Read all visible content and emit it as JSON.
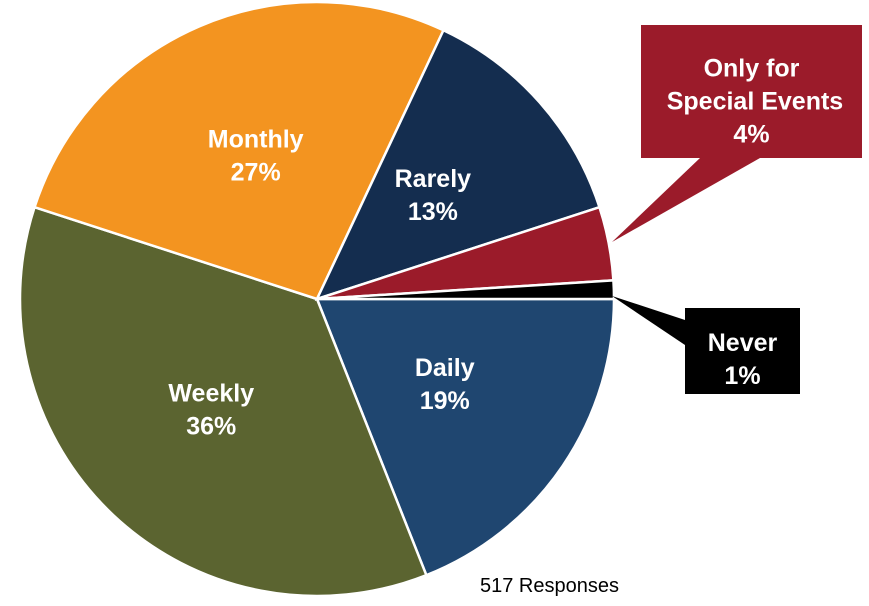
{
  "chart_data": {
    "type": "pie",
    "categories": [
      "Daily",
      "Weekly",
      "Monthly",
      "Rarely",
      "Only for Special Events",
      "Never"
    ],
    "values": [
      19,
      36,
      27,
      13,
      4,
      1
    ],
    "value_labels": [
      "19%",
      "36%",
      "27%",
      "13%",
      "4%",
      "1%"
    ],
    "colors": [
      "#1f4670",
      "#5b6430",
      "#f39420",
      "#142d4f",
      "#9b1b2a",
      "#000000"
    ],
    "annotation": "517 Responses"
  }
}
